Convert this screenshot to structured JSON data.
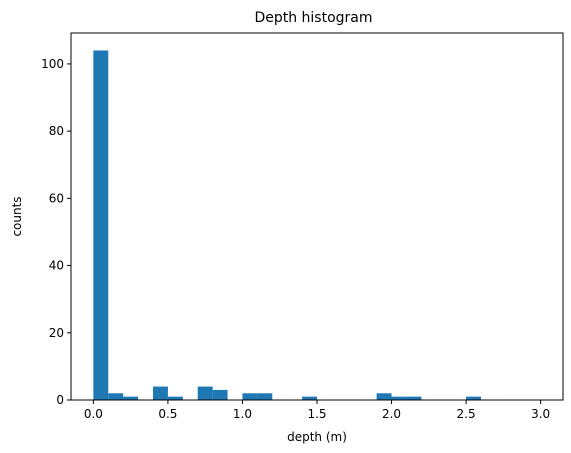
{
  "chart_data": {
    "type": "bar",
    "title": "Depth histogram",
    "xlabel": "depth (m)",
    "ylabel": "counts",
    "xlim": [
      -0.15,
      3.15
    ],
    "ylim": [
      0,
      109.2
    ],
    "xticks": [
      0.0,
      0.5,
      1.0,
      1.5,
      2.0,
      2.5,
      3.0
    ],
    "xtick_labels": [
      "0.0",
      "0.5",
      "1.0",
      "1.5",
      "2.0",
      "2.5",
      "3.0"
    ],
    "yticks": [
      0,
      20,
      40,
      60,
      80,
      100
    ],
    "ytick_labels": [
      "0",
      "20",
      "40",
      "60",
      "80",
      "100"
    ],
    "grid": false,
    "legend": "none",
    "bar_color": "#1f77b4",
    "bin_edges": [
      0.0,
      0.1,
      0.2,
      0.3,
      0.4,
      0.5,
      0.6,
      0.7,
      0.8,
      0.9,
      1.0,
      1.1,
      1.2,
      1.3,
      1.4,
      1.5,
      1.6,
      1.7,
      1.8,
      1.9,
      2.0,
      2.1,
      2.2,
      2.3,
      2.4,
      2.5,
      2.6,
      2.7,
      2.8,
      2.9,
      3.0
    ],
    "counts": [
      104,
      2,
      1,
      0,
      4,
      1,
      0,
      4,
      3,
      0,
      2,
      2,
      0,
      0,
      1,
      0,
      0,
      0,
      0,
      2,
      1,
      1,
      0,
      0,
      0,
      1,
      0,
      0,
      0,
      0
    ]
  }
}
